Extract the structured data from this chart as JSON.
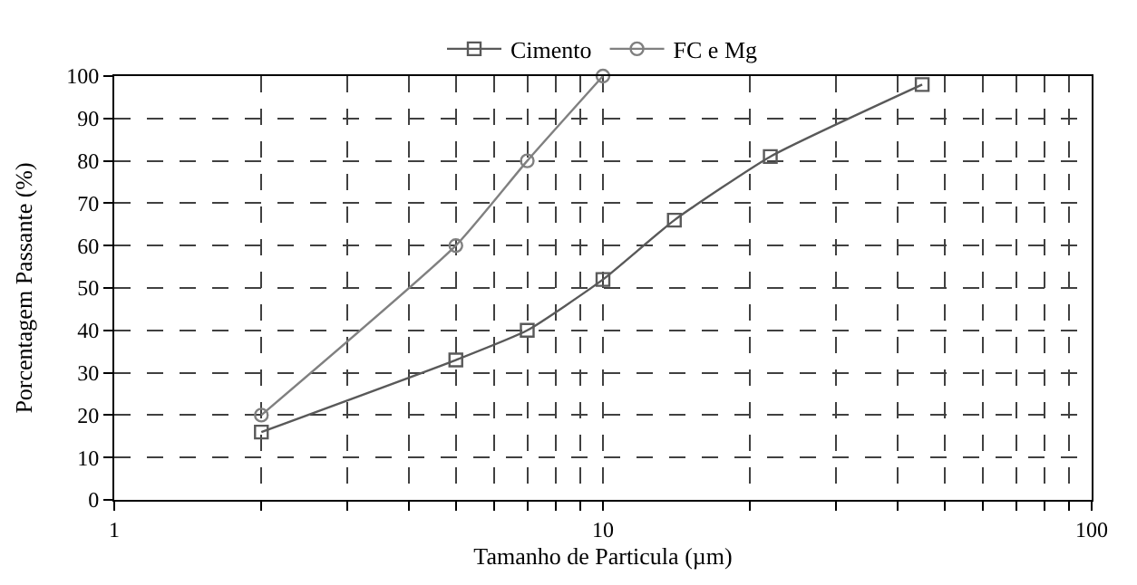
{
  "chart_data": {
    "type": "line",
    "xlabel": "Tamanho de Particula (µm)",
    "ylabel": "Porcentagem Passante (%)",
    "series": [
      {
        "name": "Cimento",
        "color": "#595959",
        "marker": "square",
        "x": [
          2,
          5,
          7,
          10,
          14,
          22,
          45
        ],
        "values": [
          16,
          33,
          40,
          52,
          66,
          81,
          98
        ]
      },
      {
        "name": "FC e Mg",
        "color": "#808080",
        "marker": "circle",
        "x": [
          2,
          5,
          7,
          10
        ],
        "values": [
          20,
          60,
          80,
          100
        ]
      }
    ],
    "log": "x",
    "xlim": [
      1,
      100
    ],
    "xticks": [
      1,
      {
        "value": 2,
        "label": null
      },
      {
        "value": 3,
        "label": null
      },
      {
        "value": 4,
        "label": null
      },
      {
        "value": 5,
        "label": null
      },
      {
        "value": 6,
        "label": null
      },
      {
        "value": 7,
        "label": null
      },
      {
        "value": 8,
        "label": null
      },
      {
        "value": 9,
        "label": null
      },
      10,
      {
        "value": 20,
        "label": null
      },
      {
        "value": 30,
        "label": null
      },
      {
        "value": 40,
        "label": null
      },
      {
        "value": 50,
        "label": null
      },
      {
        "value": 60,
        "label": null
      },
      {
        "value": 70,
        "label": null
      },
      {
        "value": 80,
        "label": null
      },
      {
        "value": 90,
        "label": null
      },
      100
    ],
    "ylim": [
      0,
      100
    ],
    "yticks": [
      0,
      10,
      20,
      30,
      40,
      50,
      60,
      70,
      80,
      90,
      100
    ],
    "grid": true,
    "legend": "top",
    "line_style": "solid"
  }
}
